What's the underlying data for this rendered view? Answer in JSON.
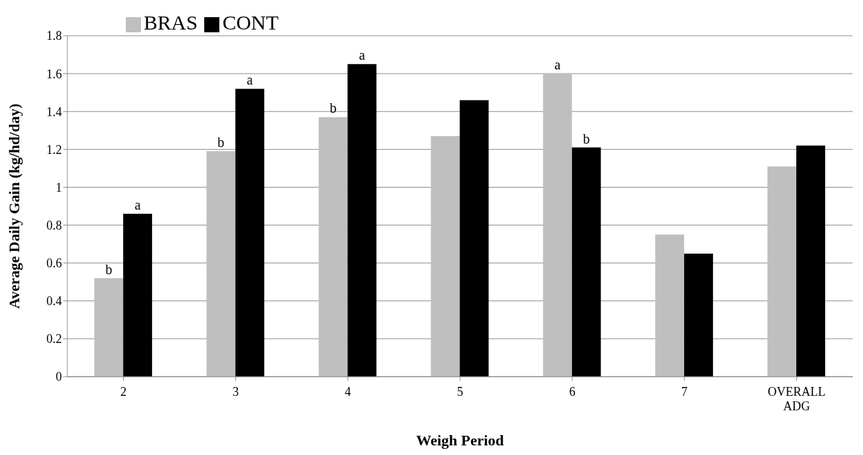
{
  "chart_data": {
    "type": "bar",
    "xlabel": "Weigh Period",
    "ylabel": "Average Daily Gain (kg/hd/day)",
    "categories": [
      "2",
      "3",
      "4",
      "5",
      "6",
      "7",
      "OVERALL ADG"
    ],
    "series": [
      {
        "name": "BRAS",
        "color": "#bfbfbf",
        "values": [
          0.52,
          1.19,
          1.37,
          1.27,
          1.6,
          0.75,
          1.11
        ],
        "value_labels": [
          "b",
          "b",
          "b",
          null,
          "a",
          null,
          null
        ]
      },
      {
        "name": "CONT",
        "color": "#000000",
        "values": [
          0.86,
          1.52,
          1.65,
          1.46,
          1.21,
          0.65,
          1.22
        ],
        "value_labels": [
          "a",
          "a",
          "a",
          null,
          "b",
          null,
          null
        ]
      }
    ],
    "ylim": [
      0,
      1.8
    ],
    "yticks": [
      0,
      0.2,
      0.4,
      0.6,
      0.8,
      1,
      1.2,
      1.4,
      1.6,
      1.8
    ],
    "grid": "y",
    "legend": "top left"
  }
}
